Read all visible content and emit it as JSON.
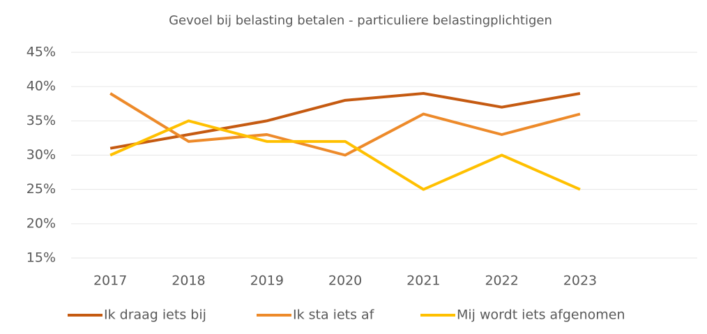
{
  "chart_data": {
    "type": "line",
    "title": "Gevoel bij belasting betalen - particuliere belastingplichtigen",
    "categories": [
      "2017",
      "2018",
      "2019",
      "2020",
      "2021",
      "2022",
      "2023"
    ],
    "series": [
      {
        "name": "Ik draag iets bij",
        "color": "#c55a11",
        "values": [
          31,
          33,
          35,
          38,
          39,
          37,
          39
        ]
      },
      {
        "name": "Ik sta iets af",
        "color": "#ed8a2a",
        "values": [
          39,
          32,
          33,
          30,
          36,
          33,
          36
        ]
      },
      {
        "name": "Mij wordt iets afgenomen",
        "color": "#ffc000",
        "values": [
          30,
          35,
          32,
          32,
          25,
          30,
          25
        ]
      }
    ],
    "ylim": [
      15,
      45
    ],
    "yticks": [
      {
        "value": 15,
        "label": "15%"
      },
      {
        "value": 20,
        "label": "20%"
      },
      {
        "value": 25,
        "label": "25%"
      },
      {
        "value": 30,
        "label": "30%"
      },
      {
        "value": 35,
        "label": "35%"
      },
      {
        "value": 40,
        "label": "40%"
      },
      {
        "value": 45,
        "label": "45%"
      }
    ],
    "grid": true
  }
}
